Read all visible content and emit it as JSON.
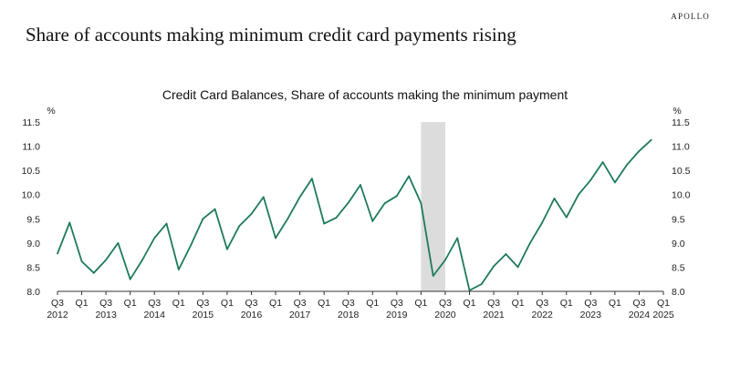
{
  "brand": "APOLLO",
  "headline": "Share of accounts making minimum credit card payments rising",
  "colors": {
    "line": "#1e7a5a",
    "recession": "#dcdcdc",
    "axis": "#333333"
  },
  "chart_data": {
    "type": "line",
    "title": "Credit Card Balances, Share of accounts making the minimum payment",
    "ylabel_left": "%",
    "ylabel_right": "%",
    "ylim": [
      8.0,
      11.5
    ],
    "yticks": [
      "11.5",
      "11.0",
      "10.5",
      "10.0",
      "9.5",
      "9.0",
      "8.5",
      "8.0"
    ],
    "xlim": [
      2012.5,
      2025.0
    ],
    "shaded_region": {
      "start": "Q1 2020",
      "end": "Q2 2020",
      "start_x": 2020.0,
      "end_x": 2020.5
    },
    "xticks": [
      {
        "quarter": "Q3",
        "year": "2012",
        "x": 2012.5
      },
      {
        "quarter": "Q1",
        "year": "",
        "x": 2013.0
      },
      {
        "quarter": "Q3",
        "year": "2013",
        "x": 2013.5
      },
      {
        "quarter": "Q1",
        "year": "",
        "x": 2014.0
      },
      {
        "quarter": "Q3",
        "year": "2014",
        "x": 2014.5
      },
      {
        "quarter": "Q1",
        "year": "",
        "x": 2015.0
      },
      {
        "quarter": "Q3",
        "year": "2015",
        "x": 2015.5
      },
      {
        "quarter": "Q1",
        "year": "",
        "x": 2016.0
      },
      {
        "quarter": "Q3",
        "year": "2016",
        "x": 2016.5
      },
      {
        "quarter": "Q1",
        "year": "",
        "x": 2017.0
      },
      {
        "quarter": "Q3",
        "year": "2017",
        "x": 2017.5
      },
      {
        "quarter": "Q1",
        "year": "",
        "x": 2018.0
      },
      {
        "quarter": "Q3",
        "year": "2018",
        "x": 2018.5
      },
      {
        "quarter": "Q1",
        "year": "",
        "x": 2019.0
      },
      {
        "quarter": "Q3",
        "year": "2019",
        "x": 2019.5
      },
      {
        "quarter": "Q1",
        "year": "",
        "x": 2020.0
      },
      {
        "quarter": "Q3",
        "year": "2020",
        "x": 2020.5
      },
      {
        "quarter": "Q1",
        "year": "",
        "x": 2021.0
      },
      {
        "quarter": "Q3",
        "year": "2021",
        "x": 2021.5
      },
      {
        "quarter": "Q1",
        "year": "",
        "x": 2022.0
      },
      {
        "quarter": "Q3",
        "year": "2022",
        "x": 2022.5
      },
      {
        "quarter": "Q1",
        "year": "",
        "x": 2023.0
      },
      {
        "quarter": "Q3",
        "year": "2023",
        "x": 2023.5
      },
      {
        "quarter": "Q1",
        "year": "",
        "x": 2024.0
      },
      {
        "quarter": "Q3",
        "year": "2024",
        "x": 2024.5
      },
      {
        "quarter": "Q1",
        "year": "2025",
        "x": 2025.0
      }
    ],
    "series": [
      {
        "values": [
          {
            "x": 2012.5,
            "y": 8.78
          },
          {
            "x": 2012.75,
            "y": 9.42
          },
          {
            "x": 2013.0,
            "y": 8.62
          },
          {
            "x": 2013.25,
            "y": 8.38
          },
          {
            "x": 2013.5,
            "y": 8.65
          },
          {
            "x": 2013.75,
            "y": 9.0
          },
          {
            "x": 2014.0,
            "y": 8.25
          },
          {
            "x": 2014.25,
            "y": 8.65
          },
          {
            "x": 2014.5,
            "y": 9.1
          },
          {
            "x": 2014.75,
            "y": 9.4
          },
          {
            "x": 2015.0,
            "y": 8.45
          },
          {
            "x": 2015.25,
            "y": 8.95
          },
          {
            "x": 2015.5,
            "y": 9.5
          },
          {
            "x": 2015.75,
            "y": 9.7
          },
          {
            "x": 2016.0,
            "y": 8.87
          },
          {
            "x": 2016.25,
            "y": 9.35
          },
          {
            "x": 2016.5,
            "y": 9.6
          },
          {
            "x": 2016.75,
            "y": 9.95
          },
          {
            "x": 2017.0,
            "y": 9.1
          },
          {
            "x": 2017.25,
            "y": 9.5
          },
          {
            "x": 2017.5,
            "y": 9.95
          },
          {
            "x": 2017.75,
            "y": 10.33
          },
          {
            "x": 2018.0,
            "y": 9.4
          },
          {
            "x": 2018.25,
            "y": 9.52
          },
          {
            "x": 2018.5,
            "y": 9.83
          },
          {
            "x": 2018.75,
            "y": 10.2
          },
          {
            "x": 2019.0,
            "y": 9.45
          },
          {
            "x": 2019.25,
            "y": 9.82
          },
          {
            "x": 2019.5,
            "y": 9.97
          },
          {
            "x": 2019.75,
            "y": 10.38
          },
          {
            "x": 2020.0,
            "y": 9.82
          },
          {
            "x": 2020.25,
            "y": 8.32
          },
          {
            "x": 2020.5,
            "y": 8.65
          },
          {
            "x": 2020.75,
            "y": 9.1
          },
          {
            "x": 2021.0,
            "y": 8.02
          },
          {
            "x": 2021.25,
            "y": 8.15
          },
          {
            "x": 2021.5,
            "y": 8.52
          },
          {
            "x": 2021.75,
            "y": 8.77
          },
          {
            "x": 2022.0,
            "y": 8.5
          },
          {
            "x": 2022.25,
            "y": 9.0
          },
          {
            "x": 2022.5,
            "y": 9.42
          },
          {
            "x": 2022.75,
            "y": 9.92
          },
          {
            "x": 2023.0,
            "y": 9.53
          },
          {
            "x": 2023.25,
            "y": 10.0
          },
          {
            "x": 2023.5,
            "y": 10.3
          },
          {
            "x": 2023.75,
            "y": 10.67
          },
          {
            "x": 2024.0,
            "y": 10.25
          },
          {
            "x": 2024.25,
            "y": 10.62
          },
          {
            "x": 2024.5,
            "y": 10.9
          },
          {
            "x": 2024.75,
            "y": 11.13
          }
        ]
      }
    ],
    "grid": false,
    "legend": "none"
  }
}
